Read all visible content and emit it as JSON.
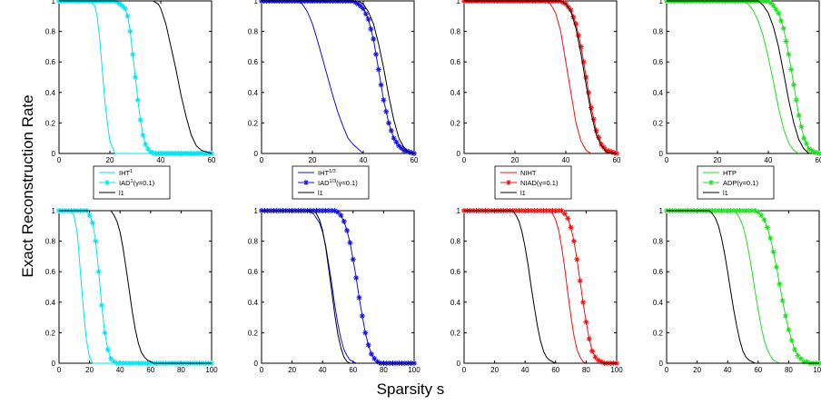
{
  "figure": {
    "ylabel": "Exact Reconstruction Rate",
    "xlabel": "Sparsity s"
  },
  "chart_data": [
    {
      "type": "line",
      "xlim": [
        0,
        60
      ],
      "ylim": [
        0,
        1
      ],
      "xticks": [
        "0",
        "20",
        "40",
        "60"
      ],
      "yticks": [
        "0",
        "0.2",
        "0.4",
        "0.6",
        "0.8",
        "1"
      ],
      "legend": "below",
      "series": [
        {
          "name": "IHT",
          "sup": "1",
          "color": "#00e5ee",
          "marker": "none",
          "x": [
            0,
            12,
            14,
            15,
            16,
            17,
            18,
            19,
            20,
            22,
            60
          ],
          "y": [
            1,
            1,
            0.97,
            0.9,
            0.75,
            0.55,
            0.35,
            0.2,
            0.08,
            0,
            0
          ]
        },
        {
          "name": "IAD",
          "sup": "1",
          "suffix": "(γ=0.1)",
          "color": "#00e5ee",
          "marker": "star",
          "x": [
            0,
            22,
            24,
            26,
            27,
            28,
            29,
            30,
            31,
            32,
            33,
            34,
            35,
            36,
            38,
            40,
            60
          ],
          "y": [
            1,
            1,
            0.98,
            0.95,
            0.9,
            0.8,
            0.65,
            0.5,
            0.35,
            0.22,
            0.12,
            0.06,
            0.03,
            0.01,
            0,
            0,
            0
          ]
        },
        {
          "name": "l1",
          "color": "#000000",
          "marker": "none",
          "x": [
            0,
            37,
            39,
            40,
            42,
            44,
            46,
            48,
            50,
            52,
            54,
            56,
            58,
            60
          ],
          "y": [
            1,
            1,
            0.98,
            0.95,
            0.85,
            0.7,
            0.55,
            0.38,
            0.24,
            0.12,
            0.05,
            0.02,
            0.01,
            0
          ]
        }
      ]
    },
    {
      "type": "line",
      "xlim": [
        0,
        60
      ],
      "ylim": [
        0,
        1
      ],
      "xticks": [
        "0",
        "20",
        "40",
        "60"
      ],
      "yticks": [
        "0",
        "0.2",
        "0.4",
        "0.6",
        "0.8",
        "1"
      ],
      "legend": "below",
      "series": [
        {
          "name": "IHT",
          "sup": "1/3",
          "color": "#1010dd",
          "marker": "none",
          "x": [
            0,
            14,
            16,
            18,
            20,
            22,
            24,
            26,
            28,
            30,
            32,
            34,
            36,
            38,
            40
          ],
          "y": [
            1,
            1,
            0.98,
            0.93,
            0.85,
            0.74,
            0.62,
            0.5,
            0.38,
            0.27,
            0.18,
            0.1,
            0.06,
            0.03,
            0
          ]
        },
        {
          "name": "IAD",
          "sup": "1/3",
          "suffix": "(γ=0.1)",
          "color": "#1010dd",
          "marker": "star",
          "x": [
            0,
            36,
            38,
            40,
            42,
            44,
            46,
            48,
            50,
            52,
            54,
            56,
            58,
            60
          ],
          "y": [
            1,
            1,
            0.98,
            0.95,
            0.88,
            0.75,
            0.55,
            0.35,
            0.2,
            0.1,
            0.05,
            0.02,
            0.01,
            0
          ]
        },
        {
          "name": "l1",
          "color": "#000000",
          "marker": "none",
          "x": [
            0,
            38,
            40,
            42,
            44,
            46,
            48,
            50,
            52,
            54,
            56,
            58,
            60
          ],
          "y": [
            1,
            1,
            0.98,
            0.93,
            0.85,
            0.72,
            0.56,
            0.38,
            0.22,
            0.1,
            0.04,
            0.01,
            0
          ]
        }
      ]
    },
    {
      "type": "line",
      "xlim": [
        0,
        60
      ],
      "ylim": [
        0,
        1
      ],
      "xticks": [
        "0",
        "20",
        "40",
        "60"
      ],
      "yticks": [
        "0",
        "0.2",
        "0.4",
        "0.6",
        "0.8",
        "1"
      ],
      "legend": "below",
      "series": [
        {
          "name": "NIHT",
          "color": "#ee1111",
          "marker": "none",
          "x": [
            0,
            32,
            34,
            36,
            38,
            40,
            42,
            44,
            46,
            48,
            50
          ],
          "y": [
            1,
            1,
            0.98,
            0.92,
            0.8,
            0.6,
            0.4,
            0.2,
            0.08,
            0.02,
            0
          ]
        },
        {
          "name": "NIAD",
          "suffix": "(γ=0.1)",
          "color": "#ee1111",
          "marker": "star",
          "x": [
            0,
            38,
            40,
            42,
            44,
            46,
            48,
            50,
            52,
            54,
            56,
            58,
            60
          ],
          "y": [
            1,
            1,
            0.98,
            0.94,
            0.85,
            0.7,
            0.5,
            0.3,
            0.15,
            0.06,
            0.02,
            0.01,
            0
          ]
        },
        {
          "name": "l1",
          "color": "#000000",
          "marker": "none",
          "x": [
            0,
            38,
            40,
            42,
            44,
            46,
            48,
            50,
            52,
            54,
            56,
            58,
            60
          ],
          "y": [
            1,
            1,
            0.98,
            0.93,
            0.82,
            0.65,
            0.45,
            0.26,
            0.12,
            0.05,
            0.01,
            0,
            0
          ]
        }
      ]
    },
    {
      "type": "line",
      "xlim": [
        0,
        60
      ],
      "ylim": [
        0,
        1
      ],
      "xticks": [
        "0",
        "20",
        "40",
        "60"
      ],
      "yticks": [
        "0",
        "0.2",
        "0.4",
        "0.6",
        "0.8",
        "1"
      ],
      "legend": "below",
      "series": [
        {
          "name": "HTP",
          "color": "#22dd22",
          "marker": "none",
          "x": [
            0,
            30,
            32,
            34,
            36,
            38,
            40,
            42,
            44,
            46,
            48,
            50,
            52
          ],
          "y": [
            1,
            1,
            0.98,
            0.94,
            0.87,
            0.77,
            0.63,
            0.47,
            0.3,
            0.16,
            0.07,
            0.02,
            0
          ]
        },
        {
          "name": "ADP",
          "suffix": "(γ=0.1)",
          "color": "#22dd22",
          "marker": "star",
          "x": [
            0,
            40,
            42,
            44,
            46,
            48,
            50,
            52,
            54,
            56,
            58,
            60
          ],
          "y": [
            1,
            1,
            0.97,
            0.92,
            0.82,
            0.65,
            0.45,
            0.25,
            0.1,
            0.03,
            0.01,
            0
          ]
        },
        {
          "name": "l1",
          "color": "#000000",
          "marker": "none",
          "x": [
            0,
            36,
            38,
            40,
            42,
            44,
            46,
            48,
            50,
            52,
            54,
            56
          ],
          "y": [
            1,
            1,
            0.97,
            0.92,
            0.83,
            0.7,
            0.53,
            0.35,
            0.2,
            0.09,
            0.03,
            0
          ]
        }
      ]
    },
    {
      "type": "line",
      "xlim": [
        0,
        100
      ],
      "ylim": [
        0,
        1
      ],
      "xticks": [
        "0",
        "20",
        "40",
        "60",
        "80",
        "100"
      ],
      "yticks": [
        "0",
        "0.2",
        "0.4",
        "0.6",
        "0.8",
        "1"
      ],
      "series": [
        {
          "color": "#00e5ee",
          "marker": "none",
          "x": [
            0,
            8,
            10,
            12,
            14,
            16,
            18,
            20,
            22,
            100
          ],
          "y": [
            1,
            1,
            0.96,
            0.85,
            0.6,
            0.35,
            0.15,
            0.04,
            0,
            0
          ]
        },
        {
          "color": "#00e5ee",
          "marker": "star",
          "x": [
            0,
            18,
            20,
            22,
            24,
            26,
            28,
            30,
            32,
            34,
            36,
            38,
            100
          ],
          "y": [
            1,
            1,
            0.97,
            0.92,
            0.8,
            0.6,
            0.38,
            0.2,
            0.09,
            0.03,
            0.01,
            0,
            0
          ]
        },
        {
          "color": "#000000",
          "marker": "none",
          "x": [
            0,
            34,
            36,
            38,
            40,
            42,
            44,
            46,
            48,
            50,
            52,
            54,
            56,
            58,
            60,
            62,
            100
          ],
          "y": [
            1,
            1,
            0.97,
            0.93,
            0.86,
            0.75,
            0.62,
            0.48,
            0.34,
            0.22,
            0.13,
            0.07,
            0.04,
            0.02,
            0.01,
            0,
            0
          ]
        }
      ]
    },
    {
      "type": "line",
      "xlim": [
        0,
        100
      ],
      "ylim": [
        0,
        1
      ],
      "xticks": [
        "0",
        "20",
        "40",
        "60",
        "80",
        "100"
      ],
      "yticks": [
        "0",
        "0.2",
        "0.4",
        "0.6",
        "0.8",
        "1"
      ],
      "series": [
        {
          "color": "#1010dd",
          "marker": "none",
          "x": [
            0,
            30,
            34,
            38,
            40,
            42,
            44,
            46,
            48,
            50,
            52,
            54,
            56,
            58,
            60,
            62,
            100
          ],
          "y": [
            1,
            1,
            0.98,
            0.92,
            0.86,
            0.77,
            0.65,
            0.52,
            0.38,
            0.26,
            0.16,
            0.09,
            0.05,
            0.02,
            0.01,
            0,
            0
          ]
        },
        {
          "color": "#1010dd",
          "marker": "star",
          "x": [
            0,
            48,
            50,
            52,
            54,
            56,
            58,
            60,
            62,
            64,
            66,
            68,
            70,
            72,
            74,
            76,
            78,
            80,
            100
          ],
          "y": [
            1,
            1,
            0.99,
            0.97,
            0.93,
            0.87,
            0.79,
            0.68,
            0.56,
            0.43,
            0.31,
            0.2,
            0.12,
            0.06,
            0.03,
            0.01,
            0,
            0,
            0
          ]
        },
        {
          "color": "#000000",
          "marker": "none",
          "x": [
            0,
            34,
            36,
            38,
            40,
            42,
            44,
            46,
            48,
            50,
            52,
            54,
            56,
            58,
            100
          ],
          "y": [
            1,
            1,
            0.98,
            0.94,
            0.87,
            0.76,
            0.62,
            0.47,
            0.32,
            0.19,
            0.1,
            0.04,
            0.01,
            0,
            0
          ]
        }
      ]
    },
    {
      "type": "line",
      "xlim": [
        0,
        100
      ],
      "ylim": [
        0,
        1
      ],
      "xticks": [
        "0",
        "20",
        "40",
        "60",
        "80",
        "100"
      ],
      "yticks": [
        "0",
        "0.2",
        "0.4",
        "0.6",
        "0.8",
        "1"
      ],
      "series": [
        {
          "color": "#ee1111",
          "marker": "none",
          "x": [
            0,
            56,
            58,
            60,
            62,
            64,
            66,
            68,
            70,
            72,
            74,
            76,
            78,
            80,
            100
          ],
          "y": [
            1,
            1,
            0.98,
            0.94,
            0.87,
            0.76,
            0.62,
            0.46,
            0.31,
            0.18,
            0.09,
            0.04,
            0.01,
            0,
            0
          ]
        },
        {
          "color": "#ee1111",
          "marker": "star",
          "x": [
            0,
            64,
            66,
            68,
            70,
            72,
            74,
            76,
            78,
            80,
            82,
            84,
            86,
            88,
            90,
            92,
            100
          ],
          "y": [
            1,
            1,
            0.98,
            0.95,
            0.89,
            0.8,
            0.68,
            0.54,
            0.4,
            0.27,
            0.16,
            0.08,
            0.04,
            0.02,
            0.01,
            0,
            0
          ]
        },
        {
          "color": "#000000",
          "marker": "none",
          "x": [
            0,
            32,
            34,
            36,
            38,
            40,
            42,
            44,
            46,
            48,
            50,
            52,
            54,
            56,
            58,
            60,
            100
          ],
          "y": [
            1,
            1,
            0.97,
            0.93,
            0.86,
            0.76,
            0.64,
            0.5,
            0.37,
            0.25,
            0.15,
            0.08,
            0.04,
            0.02,
            0.01,
            0,
            0
          ]
        }
      ]
    },
    {
      "type": "line",
      "xlim": [
        0,
        100
      ],
      "ylim": [
        0,
        1
      ],
      "xticks": [
        "0",
        "20",
        "40",
        "60",
        "80",
        "100"
      ],
      "yticks": [
        "0",
        "0.2",
        "0.4",
        "0.6",
        "0.8",
        "1"
      ],
      "series": [
        {
          "color": "#22dd22",
          "marker": "none",
          "x": [
            0,
            44,
            46,
            48,
            50,
            52,
            54,
            56,
            58,
            60,
            62,
            64,
            66,
            68,
            70,
            72,
            74,
            100
          ],
          "y": [
            1,
            1,
            0.98,
            0.95,
            0.9,
            0.82,
            0.72,
            0.6,
            0.47,
            0.35,
            0.24,
            0.15,
            0.09,
            0.05,
            0.02,
            0.01,
            0,
            0
          ]
        },
        {
          "color": "#22dd22",
          "marker": "star",
          "x": [
            0,
            58,
            60,
            62,
            64,
            66,
            68,
            70,
            72,
            74,
            76,
            78,
            80,
            82,
            84,
            86,
            88,
            90,
            92,
            94,
            100
          ],
          "y": [
            1,
            1,
            0.99,
            0.97,
            0.94,
            0.89,
            0.82,
            0.73,
            0.63,
            0.52,
            0.41,
            0.31,
            0.22,
            0.15,
            0.09,
            0.05,
            0.03,
            0.01,
            0.01,
            0,
            0
          ]
        },
        {
          "color": "#000000",
          "marker": "none",
          "x": [
            0,
            28,
            30,
            32,
            34,
            36,
            38,
            40,
            42,
            44,
            46,
            48,
            50,
            52,
            54,
            56,
            58,
            100
          ],
          "y": [
            1,
            1,
            0.98,
            0.95,
            0.9,
            0.82,
            0.72,
            0.6,
            0.47,
            0.35,
            0.24,
            0.15,
            0.08,
            0.04,
            0.02,
            0.01,
            0,
            0
          ]
        }
      ]
    }
  ]
}
